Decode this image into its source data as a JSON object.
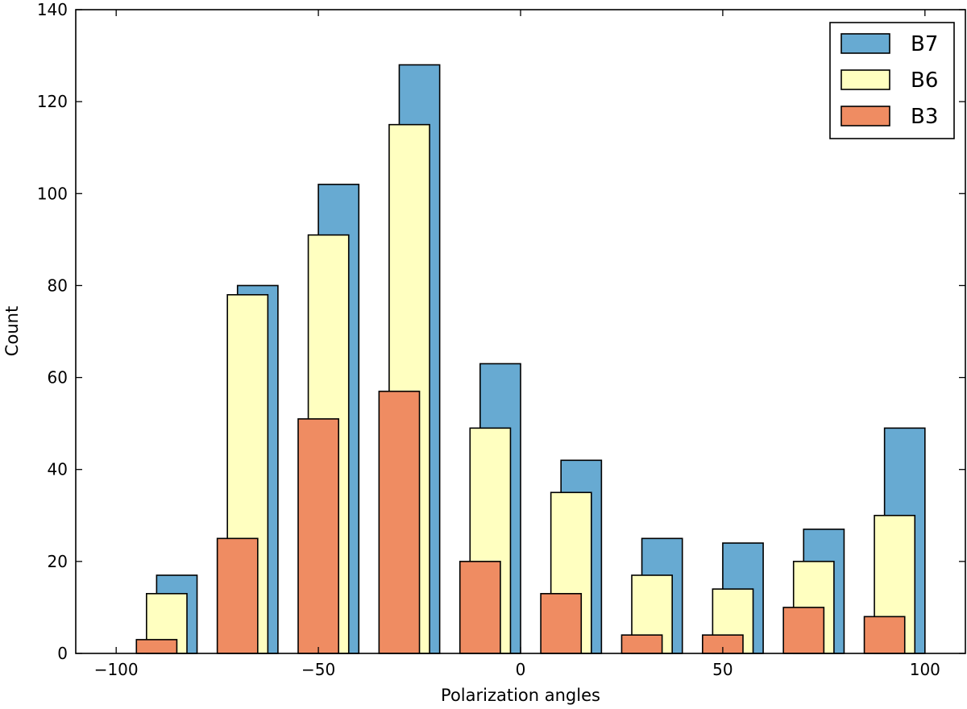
{
  "chart_data": {
    "type": "bar",
    "xlabel": "Polarization angles",
    "ylabel": "Count",
    "xlim": [
      -110,
      110
    ],
    "ylim": [
      0,
      140
    ],
    "xticks": [
      -100,
      -50,
      0,
      50,
      100
    ],
    "xtick_labels": [
      "−100",
      "−50",
      "0",
      "50",
      "100"
    ],
    "yticks": [
      0,
      20,
      40,
      60,
      80,
      100,
      120,
      140
    ],
    "ytick_labels": [
      "0",
      "20",
      "40",
      "60",
      "80",
      "100",
      "120",
      "140"
    ],
    "legend_position": "top-right",
    "bin_centers": [
      -85,
      -65,
      -45,
      -25,
      -5,
      15,
      35,
      55,
      75,
      95
    ],
    "series": [
      {
        "name": "B7",
        "color": "#67aad2",
        "values": [
          17,
          80,
          102,
          128,
          63,
          42,
          25,
          24,
          27,
          49
        ]
      },
      {
        "name": "B6",
        "color": "#ffffc0",
        "values": [
          13,
          78,
          91,
          115,
          49,
          35,
          17,
          14,
          20,
          30
        ]
      },
      {
        "name": "B3",
        "color": "#ef8c62",
        "values": [
          3,
          25,
          51,
          57,
          20,
          13,
          4,
          4,
          10,
          8
        ]
      }
    ]
  }
}
